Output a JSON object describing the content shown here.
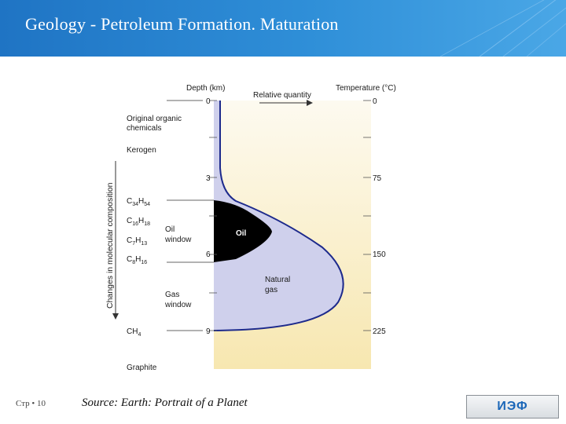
{
  "slide": {
    "title": "Geology  - Petroleum Formation. Maturation",
    "page_number": "Стр • 10",
    "source": "Source: Earth: Portrait of a Planet",
    "logo_text": "ИЭФ"
  },
  "diagram": {
    "depth_label": "Depth (km)",
    "relative_label": "Relative quantity",
    "temperature_label": "Temperature (°C)",
    "depth_ticks": [
      "0",
      "3",
      "6",
      "9"
    ],
    "temp_ticks": [
      "0",
      "75",
      "150",
      "225"
    ],
    "vertical_axis_label": "Changes in molecular composition",
    "compounds": {
      "organic": [
        "Original organic",
        "chemicals"
      ],
      "kerogen": "Kerogen",
      "c34": {
        "base": "C",
        "s1": "34",
        "mid": "H",
        "s2": "54"
      },
      "c16": {
        "base": "C",
        "s1": "16",
        "mid": "H",
        "s2": "18"
      },
      "c7": {
        "base": "C",
        "s1": "7",
        "mid": "H",
        "s2": "13"
      },
      "c8": {
        "base": "C",
        "s1": "8",
        "mid": "H",
        "s2": "16"
      },
      "ch4": {
        "base": "CH",
        "s1": "4"
      },
      "graphite": "Graphite"
    },
    "oil_window": [
      "Oil",
      "window"
    ],
    "gas_window": [
      "Gas",
      "window"
    ],
    "oil_label": "Oil",
    "natural_gas": [
      "Natural",
      "gas"
    ],
    "colors": {
      "panel_top": "#fdfaf0",
      "panel_bottom": "#f7e7b0",
      "gas_fill": "#cfd0ec",
      "boundary": "#1d2a8c",
      "oil_fill": "#000000"
    }
  }
}
